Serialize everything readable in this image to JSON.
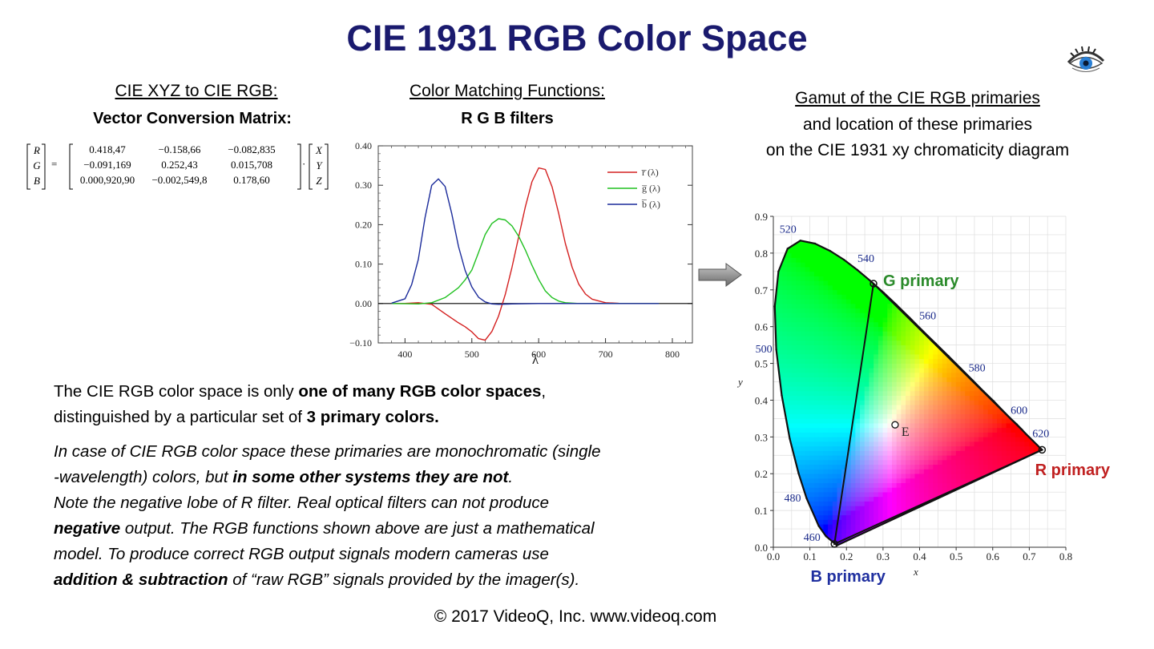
{
  "title": "CIE 1931 RGB Color Space",
  "col1": {
    "heading": "CIE XYZ to CIE RGB:",
    "subheading": "Vector Conversion Matrix:",
    "lhs": [
      "R",
      "G",
      "B"
    ],
    "matrix": [
      [
        "0.418,47",
        "−0.158,66",
        "−0.082,835"
      ],
      [
        "−0.091,169",
        "0.252,43",
        "0.015,708"
      ],
      [
        "0.000,920,90",
        "−0.002,549,8",
        "0.178,60"
      ]
    ],
    "rhs": [
      "X",
      "Y",
      "Z"
    ],
    "equals": "=",
    "dot": "·"
  },
  "col2": {
    "heading": "Color Matching Functions:",
    "subheading": "R G B filters"
  },
  "col3": {
    "heading": "Gamut of the CIE RGB primaries",
    "line2": "and location of these primaries",
    "line3": "on the CIE 1931 xy chromaticity diagram"
  },
  "paragraph1": {
    "t1": "The CIE RGB color space is only ",
    "b1": "one of many RGB color spaces",
    "t2": ",",
    "t3": "distinguished by a particular set of ",
    "b2": "3 primary colors."
  },
  "paragraph2": {
    "i1": "In case of CIE RGB color space these primaries are monochromatic (single",
    "i2": "-wavelength) colors, but ",
    "ib1": "in some other systems they are not",
    "i3": ".",
    "i4": "Note the negative lobe of R filter. Real optical filters can not produce",
    "ib2": "negative",
    "i5": " output. The RGB functions shown above are just a mathematical",
    "i6": "model. To produce correct RGB output signals modern cameras use",
    "ib3": "addition & subtraction",
    "i7": " of “raw RGB” signals provided by the imager(s)."
  },
  "footer": "© 2017 VideoQ, Inc. www.videoq.com",
  "icons": {
    "eye": "eye-icon",
    "arrow": "right-arrow-icon"
  },
  "colors": {
    "title": "#1a1a6e",
    "r": "#d42020",
    "g": "#20c020",
    "b": "#1a2a9a",
    "g_label": "#2a8a2a",
    "r_label": "#c02020",
    "b_label": "#2030a0"
  },
  "chart_data": [
    {
      "type": "line",
      "xlabel": "λ",
      "ylabel": "",
      "xlim": [
        360,
        830
      ],
      "ylim": [
        -0.1,
        0.4
      ],
      "xticks": [
        400,
        500,
        600,
        700,
        800
      ],
      "yticks": [
        -0.1,
        0.0,
        0.1,
        0.2,
        0.3,
        0.4
      ],
      "ytick_labels": [
        "−0.10",
        "0.00",
        "0.10",
        "0.20",
        "0.30",
        "0.40"
      ],
      "legend_position": "top-right",
      "series": [
        {
          "name": "r̅ (λ)",
          "color": "#d42020",
          "points": [
            [
              380,
              0
            ],
            [
              400,
              0.0003
            ],
            [
              420,
              0.002
            ],
            [
              440,
              -0.002
            ],
            [
              460,
              -0.026
            ],
            [
              480,
              -0.049
            ],
            [
              490,
              -0.059
            ],
            [
              500,
              -0.072
            ],
            [
              510,
              -0.089
            ],
            [
              520,
              -0.093
            ],
            [
              530,
              -0.071
            ],
            [
              540,
              -0.032
            ],
            [
              550,
              0.023
            ],
            [
              560,
              0.091
            ],
            [
              570,
              0.168
            ],
            [
              580,
              0.245
            ],
            [
              590,
              0.309
            ],
            [
              600,
              0.344
            ],
            [
              610,
              0.34
            ],
            [
              620,
              0.296
            ],
            [
              630,
              0.228
            ],
            [
              640,
              0.152
            ],
            [
              650,
              0.092
            ],
            [
              660,
              0.049
            ],
            [
              670,
              0.024
            ],
            [
              680,
              0.011
            ],
            [
              700,
              0.002
            ],
            [
              720,
              0.0004
            ],
            [
              780,
              0
            ]
          ]
        },
        {
          "name": "g̅ (λ)",
          "color": "#20c020",
          "points": [
            [
              380,
              0
            ],
            [
              420,
              -0.001
            ],
            [
              440,
              0.002
            ],
            [
              460,
              0.015
            ],
            [
              480,
              0.04
            ],
            [
              490,
              0.06
            ],
            [
              500,
              0.085
            ],
            [
              510,
              0.129
            ],
            [
              520,
              0.175
            ],
            [
              530,
              0.203
            ],
            [
              540,
              0.215
            ],
            [
              550,
              0.212
            ],
            [
              560,
              0.197
            ],
            [
              570,
              0.171
            ],
            [
              580,
              0.136
            ],
            [
              590,
              0.097
            ],
            [
              600,
              0.061
            ],
            [
              610,
              0.032
            ],
            [
              620,
              0.015
            ],
            [
              630,
              0.006
            ],
            [
              640,
              0.002
            ],
            [
              660,
              0
            ],
            [
              780,
              0
            ]
          ]
        },
        {
          "name": "b̅ (λ)",
          "color": "#1a2a9a",
          "points": [
            [
              380,
              0.001
            ],
            [
              400,
              0.012
            ],
            [
              410,
              0.048
            ],
            [
              420,
              0.112
            ],
            [
              430,
              0.218
            ],
            [
              440,
              0.3
            ],
            [
              450,
              0.316
            ],
            [
              460,
              0.297
            ],
            [
              470,
              0.228
            ],
            [
              480,
              0.145
            ],
            [
              490,
              0.084
            ],
            [
              500,
              0.042
            ],
            [
              510,
              0.016
            ],
            [
              520,
              0.004
            ],
            [
              530,
              -0.001
            ],
            [
              540,
              -0.002
            ],
            [
              560,
              -0.001
            ],
            [
              600,
              0
            ],
            [
              780,
              0
            ]
          ]
        }
      ]
    },
    {
      "type": "scatter",
      "xlabel": "x",
      "ylabel": "y",
      "xlim": [
        0.0,
        0.8
      ],
      "ylim": [
        0.0,
        0.9
      ],
      "xticks": [
        0.0,
        0.1,
        0.2,
        0.3,
        0.4,
        0.5,
        0.6,
        0.7,
        0.8
      ],
      "yticks": [
        0.0,
        0.1,
        0.2,
        0.3,
        0.4,
        0.5,
        0.6,
        0.7,
        0.8,
        0.9
      ],
      "tick_labels_x": [
        "0.0",
        "0.1",
        "0.2",
        "0.3",
        "0.4",
        "0.5",
        "0.6",
        "0.7",
        "0.8"
      ],
      "tick_labels_y": [
        "0.0",
        "0.1",
        "0.2",
        "0.3",
        "0.4",
        "0.5",
        "0.6",
        "0.7",
        "0.8",
        "0.9"
      ],
      "wavelength_labels": [
        {
          "label": "460",
          "x": 0.144,
          "y": 0.03
        },
        {
          "label": "480",
          "x": 0.091,
          "y": 0.133
        },
        {
          "label": "500",
          "x": 0.008,
          "y": 0.538
        },
        {
          "label": "520",
          "x": 0.074,
          "y": 0.834
        },
        {
          "label": "540",
          "x": 0.23,
          "y": 0.754
        },
        {
          "label": "560",
          "x": 0.373,
          "y": 0.624
        },
        {
          "label": "580",
          "x": 0.512,
          "y": 0.487
        },
        {
          "label": "600",
          "x": 0.627,
          "y": 0.372
        },
        {
          "label": "620",
          "x": 0.691,
          "y": 0.308
        }
      ],
      "locus": [
        [
          0.1741,
          0.005
        ],
        [
          0.144,
          0.03
        ],
        [
          0.124,
          0.058
        ],
        [
          0.091,
          0.133
        ],
        [
          0.069,
          0.201
        ],
        [
          0.045,
          0.295
        ],
        [
          0.023,
          0.413
        ],
        [
          0.008,
          0.538
        ],
        [
          0.004,
          0.655
        ],
        [
          0.014,
          0.75
        ],
        [
          0.039,
          0.812
        ],
        [
          0.074,
          0.834
        ],
        [
          0.114,
          0.826
        ],
        [
          0.155,
          0.806
        ],
        [
          0.193,
          0.782
        ],
        [
          0.23,
          0.754
        ],
        [
          0.266,
          0.724
        ],
        [
          0.302,
          0.692
        ],
        [
          0.337,
          0.659
        ],
        [
          0.373,
          0.624
        ],
        [
          0.408,
          0.589
        ],
        [
          0.444,
          0.554
        ],
        [
          0.479,
          0.52
        ],
        [
          0.512,
          0.487
        ],
        [
          0.545,
          0.454
        ],
        [
          0.575,
          0.424
        ],
        [
          0.603,
          0.397
        ],
        [
          0.627,
          0.372
        ],
        [
          0.648,
          0.351
        ],
        [
          0.666,
          0.334
        ],
        [
          0.68,
          0.32
        ],
        [
          0.691,
          0.308
        ],
        [
          0.735,
          0.265
        ]
      ],
      "gamut": {
        "R": {
          "label": "R primary",
          "x": 0.735,
          "y": 0.265
        },
        "G": {
          "label": "G primary",
          "x": 0.274,
          "y": 0.717
        },
        "B": {
          "label": "B primary",
          "x": 0.167,
          "y": 0.009
        }
      },
      "white_point": {
        "label": "E",
        "x": 0.333,
        "y": 0.333
      }
    }
  ]
}
